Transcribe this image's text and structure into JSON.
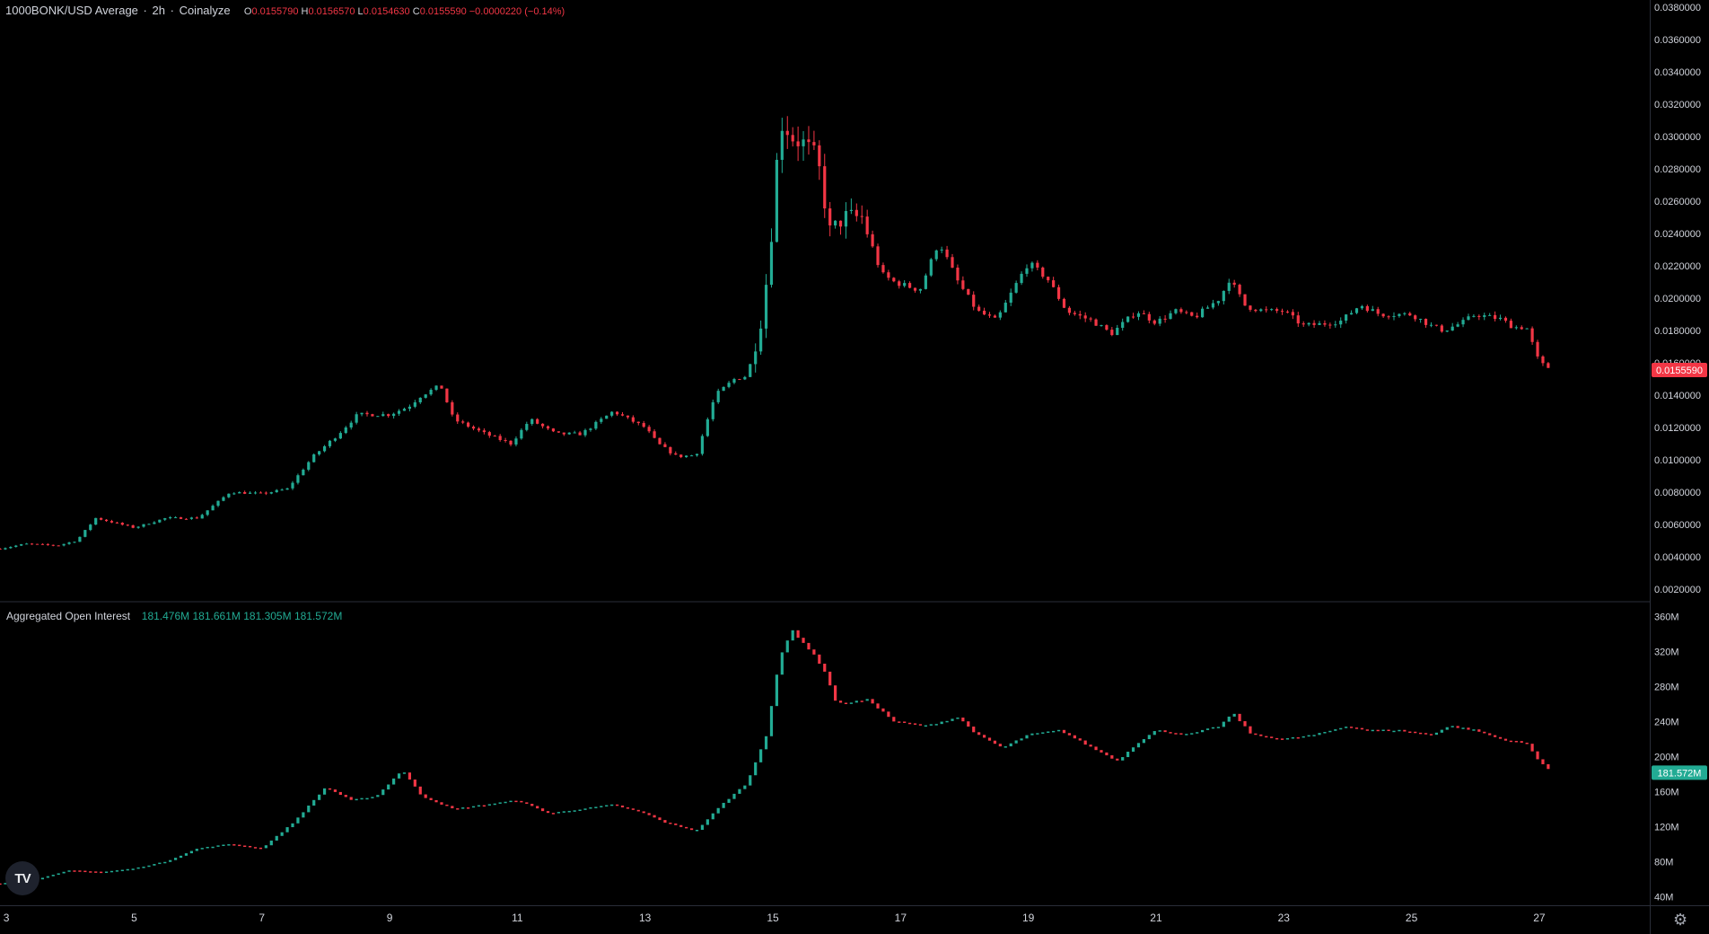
{
  "header": {
    "symbol": "1000BONK/USD Average",
    "interval": "2h",
    "source": "Coinalyze",
    "open_label": "O",
    "open": "0.0155790",
    "high_label": "H",
    "high": "0.0156570",
    "low_label": "L",
    "low": "0.0154630",
    "close_label": "C",
    "close": "0.0155590",
    "change": "−0.0000220 (−0.14%)"
  },
  "oi_header": {
    "title": "Aggregated Open Interest",
    "v1": "181.476M",
    "v2": "181.661M",
    "v3": "181.305M",
    "v4": "181.572M"
  },
  "colors": {
    "up": "#22ab94",
    "down": "#f23645",
    "axis_text": "#d1d4dc",
    "divider": "#2a2e39",
    "bg": "#000000"
  },
  "icons": {
    "logo": "tradingview-logo",
    "settings": "gear-icon"
  },
  "logo_text": "TV",
  "chart_data": [
    {
      "type": "candlestick",
      "title": "1000BONK/USD Average · 2h · Coinalyze",
      "y_ticks": [
        "0.0020000",
        "0.0040000",
        "0.0060000",
        "0.0080000",
        "0.0100000",
        "0.0120000",
        "0.0140000",
        "0.0160000",
        "0.0180000",
        "0.0200000",
        "0.0220000",
        "0.0240000",
        "0.0260000",
        "0.0280000",
        "0.0300000",
        "0.0320000",
        "0.0340000",
        "0.0360000",
        "0.0380000"
      ],
      "ylim": [
        0.002,
        0.038
      ],
      "last_value": "0.0155590",
      "x_ticks": [
        "3",
        "5",
        "7",
        "9",
        "11",
        "13",
        "15",
        "17",
        "19",
        "21",
        "23",
        "25",
        "27"
      ],
      "x_tick_days": [
        3,
        5,
        7,
        9,
        11,
        13,
        15,
        17,
        19,
        21,
        23,
        25,
        27
      ],
      "xlim_days": [
        2.9,
        28.73
      ],
      "path_days": [
        2.9,
        3.3,
        3.8,
        4.1,
        4.4,
        5.0,
        5.5,
        6.0,
        6.5,
        7.0,
        7.4,
        7.8,
        8.2,
        8.5,
        9.0,
        9.3,
        9.5,
        9.8,
        10.0,
        10.5,
        10.9,
        11.2,
        11.6,
        12.0,
        12.5,
        13.0,
        13.2,
        13.5,
        13.8,
        14.1,
        14.4,
        14.6,
        14.8,
        14.95,
        15.05,
        15.15,
        15.3,
        15.5,
        15.7,
        15.9,
        16.1,
        16.4,
        16.7,
        16.9,
        17.3,
        17.6,
        17.9,
        18.2,
        18.5,
        18.8,
        19.0,
        19.3,
        19.6,
        20.0,
        20.3,
        20.5,
        20.7,
        21.0,
        21.3,
        21.6,
        22.0,
        22.15,
        22.4,
        22.7,
        23.0,
        23.3,
        23.6,
        23.9,
        24.2,
        24.5,
        24.8,
        25.0,
        25.3,
        25.5,
        25.8,
        26.0,
        26.4,
        26.6,
        26.8,
        27.0,
        27.2
      ],
      "path_closes": [
        0.0045,
        0.0048,
        0.0047,
        0.005,
        0.0064,
        0.0058,
        0.0064,
        0.0064,
        0.008,
        0.0079,
        0.0082,
        0.0102,
        0.0116,
        0.0128,
        0.0128,
        0.0133,
        0.014,
        0.0146,
        0.0125,
        0.0116,
        0.011,
        0.0125,
        0.0116,
        0.0116,
        0.013,
        0.012,
        0.011,
        0.0102,
        0.0103,
        0.014,
        0.015,
        0.0152,
        0.0182,
        0.0225,
        0.028,
        0.031,
        0.03,
        0.0295,
        0.0285,
        0.024,
        0.025,
        0.025,
        0.0215,
        0.021,
        0.0205,
        0.0235,
        0.021,
        0.0192,
        0.0186,
        0.0208,
        0.0222,
        0.0212,
        0.0192,
        0.0186,
        0.0178,
        0.0185,
        0.0192,
        0.0185,
        0.0192,
        0.0188,
        0.02,
        0.0212,
        0.0195,
        0.0192,
        0.0192,
        0.0183,
        0.0184,
        0.0186,
        0.0196,
        0.019,
        0.019,
        0.019,
        0.0183,
        0.018,
        0.0185,
        0.019,
        0.0187,
        0.0182,
        0.0182,
        0.016,
        0.0156
      ],
      "candle_interval_days": 0.0833
    },
    {
      "type": "candlestick",
      "title": "Aggregated Open Interest",
      "y_ticks": [
        "40M",
        "80M",
        "120M",
        "160M",
        "200M",
        "240M",
        "280M",
        "320M",
        "360M"
      ],
      "y_tick_values": [
        40,
        80,
        120,
        160,
        200,
        240,
        280,
        320,
        360
      ],
      "ylim": [
        30,
        375
      ],
      "unit": "M",
      "last_value": "181.572M",
      "path_days": [
        2.9,
        3.5,
        4.0,
        4.5,
        5.0,
        5.5,
        6.0,
        6.5,
        7.0,
        7.5,
        8.0,
        8.4,
        8.8,
        9.2,
        9.5,
        10.0,
        10.5,
        11.0,
        11.5,
        12.0,
        12.5,
        13.0,
        13.3,
        13.8,
        14.2,
        14.6,
        14.9,
        15.1,
        15.3,
        15.6,
        15.8,
        16.0,
        16.5,
        16.9,
        17.4,
        17.9,
        18.2,
        18.6,
        19.0,
        19.5,
        20.0,
        20.4,
        20.7,
        21.0,
        21.5,
        22.0,
        22.2,
        22.5,
        23.0,
        23.5,
        24.0,
        24.3,
        24.8,
        25.3,
        25.6,
        26.0,
        26.4,
        26.8,
        27.0,
        27.2
      ],
      "path_values": [
        55,
        60,
        70,
        68,
        72,
        80,
        95,
        100,
        95,
        125,
        165,
        150,
        155,
        185,
        155,
        140,
        145,
        150,
        135,
        140,
        145,
        135,
        125,
        115,
        145,
        170,
        225,
        310,
        345,
        320,
        300,
        260,
        265,
        240,
        235,
        245,
        225,
        210,
        225,
        230,
        210,
        195,
        215,
        230,
        225,
        235,
        250,
        225,
        220,
        225,
        235,
        230,
        230,
        225,
        235,
        230,
        220,
        215,
        195,
        182
      ]
    }
  ]
}
